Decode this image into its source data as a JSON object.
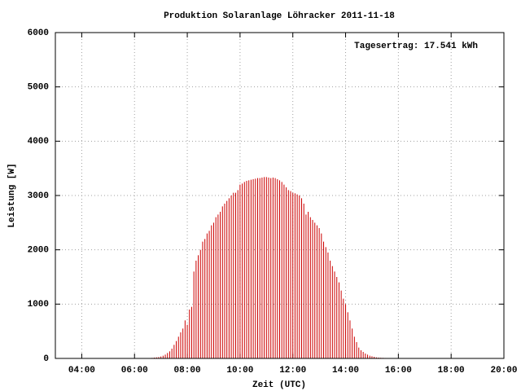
{
  "chart_data": {
    "type": "impulses",
    "title": "Produktion Solaranlage Löhracker 2011-11-18",
    "annotation": "Tagesertrag: 17.541 kWh",
    "x_label": "Zeit (UTC)",
    "y_label": "Leistung [W]",
    "color": "#cc0000",
    "grid": true,
    "xlim": [
      180,
      1200
    ],
    "xticks": [
      {
        "value": 240,
        "label": "04:00"
      },
      {
        "value": 360,
        "label": "06:00"
      },
      {
        "value": 480,
        "label": "08:00"
      },
      {
        "value": 600,
        "label": "10:00"
      },
      {
        "value": 720,
        "label": "12:00"
      },
      {
        "value": 840,
        "label": "14:00"
      },
      {
        "value": 960,
        "label": "16:00"
      },
      {
        "value": 1080,
        "label": "18:00"
      },
      {
        "value": 1200,
        "label": "20:00"
      }
    ],
    "ylim": [
      0,
      6000
    ],
    "yticks": [
      0,
      1000,
      2000,
      3000,
      4000,
      5000,
      6000
    ],
    "x": [
      400,
      405,
      410,
      415,
      420,
      425,
      430,
      435,
      440,
      445,
      450,
      455,
      460,
      465,
      470,
      475,
      480,
      485,
      490,
      495,
      500,
      505,
      510,
      515,
      520,
      525,
      530,
      535,
      540,
      545,
      550,
      555,
      560,
      565,
      570,
      575,
      580,
      585,
      590,
      595,
      600,
      605,
      610,
      615,
      620,
      625,
      630,
      635,
      640,
      645,
      650,
      655,
      660,
      665,
      670,
      675,
      680,
      685,
      690,
      695,
      700,
      705,
      710,
      715,
      720,
      725,
      730,
      735,
      740,
      745,
      750,
      755,
      760,
      765,
      770,
      775,
      780,
      785,
      790,
      795,
      800,
      805,
      810,
      815,
      820,
      825,
      830,
      835,
      840,
      845,
      850,
      855,
      860,
      865,
      870,
      875,
      880,
      885,
      890,
      895,
      900,
      905,
      910,
      915,
      920,
      925,
      930,
      935,
      940,
      945,
      950,
      955,
      960
    ],
    "values": [
      10,
      15,
      20,
      25,
      35,
      50,
      70,
      100,
      130,
      180,
      250,
      320,
      400,
      480,
      550,
      700,
      620,
      900,
      950,
      1600,
      1800,
      1900,
      2000,
      2150,
      2200,
      2300,
      2350,
      2450,
      2500,
      2600,
      2650,
      2700,
      2800,
      2850,
      2900,
      2950,
      3000,
      3050,
      3050,
      3100,
      3200,
      3220,
      3250,
      3270,
      3280,
      3290,
      3300,
      3310,
      3320,
      3320,
      3330,
      3340,
      3340,
      3330,
      3320,
      3330,
      3320,
      3300,
      3280,
      3250,
      3200,
      3150,
      3100,
      3080,
      3050,
      3040,
      3020,
      3000,
      2950,
      2850,
      2650,
      2700,
      2600,
      2550,
      2500,
      2450,
      2400,
      2300,
      2150,
      2050,
      1950,
      1800,
      1700,
      1600,
      1500,
      1400,
      1250,
      1100,
      1000,
      850,
      700,
      550,
      400,
      300,
      200,
      150,
      120,
      90,
      70,
      50,
      40,
      30,
      20,
      15,
      12,
      10,
      8,
      6,
      5,
      4,
      3,
      2,
      1
    ]
  }
}
